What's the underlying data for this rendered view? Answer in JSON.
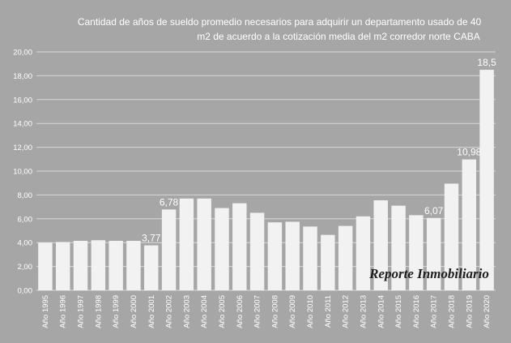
{
  "chart_data": {
    "type": "bar",
    "title_lines": [
      "Cantidad  de años  de sueldo promedio necesarios para adquirir un departamento usado de 40",
      "m2 de acuerdo  a la cotización  media del m2 corredor norte CABA"
    ],
    "categories": [
      "Año 1995",
      "Año 1996",
      "Año 1997",
      "Año 1998",
      "Año 1999",
      "Año 2000",
      "Año 2001",
      "Año 2002",
      "Año 2003",
      "Año 2004",
      "Año 2005",
      "Año 2006",
      "Año 2007",
      "Año 2008",
      "Año 2009",
      "Año 2010",
      "Año 2011",
      "Año 2012",
      "Año 2013",
      "Año 2014",
      "Año 2015",
      "Año 2016",
      "Año 2017",
      "Año 2018",
      "Año 2019",
      "Año 2020"
    ],
    "values": [
      4.0,
      4.05,
      4.15,
      4.2,
      4.15,
      4.15,
      3.77,
      6.78,
      7.7,
      7.7,
      6.9,
      7.3,
      6.5,
      5.7,
      5.75,
      5.35,
      4.65,
      5.4,
      6.2,
      7.55,
      7.1,
      6.3,
      6.07,
      8.95,
      10.98,
      18.5
    ],
    "data_labels": {
      "6": "3,77",
      "7": "6,78",
      "22": "6,07",
      "24": "10,98",
      "25": "18,5"
    },
    "ylim": [
      0,
      20
    ],
    "y_ticks": [
      "0,00",
      "2,00",
      "4,00",
      "6,00",
      "8,00",
      "10,00",
      "12,00",
      "14,00",
      "16,00",
      "18,00",
      "20,00"
    ],
    "gridlines": true,
    "legend": "none",
    "watermark": "Reporte Inmobiliario",
    "colors": {
      "background": "#a6a6a6",
      "bar": "#f2f2f2",
      "grid": "#d9d9d9",
      "text": "#ffffff"
    }
  }
}
